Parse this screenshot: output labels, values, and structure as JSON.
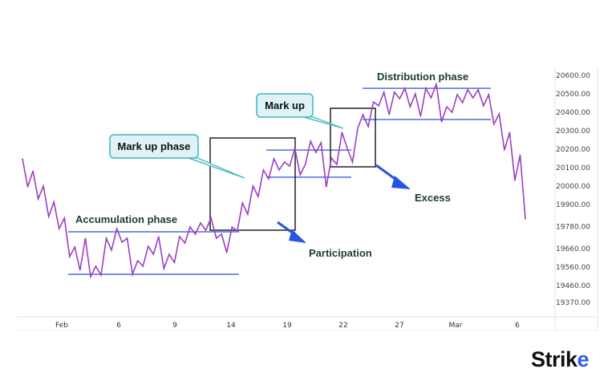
{
  "chart_data": {
    "type": "line",
    "title": "",
    "xlabel": "",
    "ylabel": "",
    "ylim": [
      19290,
      20660
    ],
    "grid": false,
    "x_tick_labels": [
      "Feb",
      "6",
      "9",
      "14",
      "19",
      "22",
      "27",
      "Mar",
      "6"
    ],
    "y_ticks": [
      20600,
      20500,
      20400,
      20300,
      20200,
      20100,
      20000,
      19900,
      19780,
      19660,
      19560,
      19460,
      19370
    ],
    "y_tick_labels": [
      "20600.00",
      "20500.00",
      "20400.00",
      "20300.00",
      "20200.00",
      "20100.00",
      "20000.00",
      "19900.00",
      "19780.00",
      "19660.00",
      "19560.00",
      "19460.00",
      "19370.00"
    ],
    "series": [
      {
        "color": "#9b3fc4",
        "values": [
          20148,
          19995,
          20082,
          19930,
          20000,
          19834,
          19913,
          19769,
          19826,
          19617,
          19669,
          19543,
          19717,
          19508,
          19565,
          19517,
          19717,
          19652,
          19769,
          19695,
          19717,
          19521,
          19595,
          19565,
          19673,
          19630,
          19726,
          19552,
          19630,
          19586,
          19726,
          19691,
          19778,
          19739,
          19800,
          19760,
          19826,
          19717,
          19739,
          19639,
          19778,
          19756,
          19908,
          19847,
          20000,
          19943,
          20087,
          20039,
          20148,
          20087,
          20130,
          20108,
          20204,
          20061,
          20117,
          20243,
          20182,
          20235,
          19995,
          20152,
          20117,
          20291,
          20204,
          20130,
          20313,
          20387,
          20322,
          20456,
          20435,
          20509,
          20387,
          20509,
          20474,
          20530,
          20430,
          20500,
          20378,
          20530,
          20478,
          20552,
          20348,
          20430,
          20400,
          20496,
          20452,
          20522,
          20478,
          20522,
          20435,
          20496,
          20335,
          20391,
          20195,
          20291,
          20030,
          20169,
          19821
        ]
      }
    ],
    "annotations": {
      "accumulation": {
        "label": "Accumulation phase",
        "resistance": 19752,
        "support": 19521
      },
      "markup_phase": {
        "label": "Mark up phase"
      },
      "participation": {
        "label": "Participation",
        "resistance": 20195,
        "support": 20048
      },
      "markup": {
        "label": "Mark up"
      },
      "excess": {
        "label": "Excess"
      },
      "distribution": {
        "label": "Distribution phase",
        "resistance": 20530,
        "support": 20361
      }
    },
    "level_line_color": "#4d6fe0",
    "callout_color": "#3fb6c0",
    "arrow_color": "#2456e6"
  },
  "logo": {
    "text": "Strike",
    "part1": "Stri",
    "part2": "k",
    "part3": "e"
  }
}
